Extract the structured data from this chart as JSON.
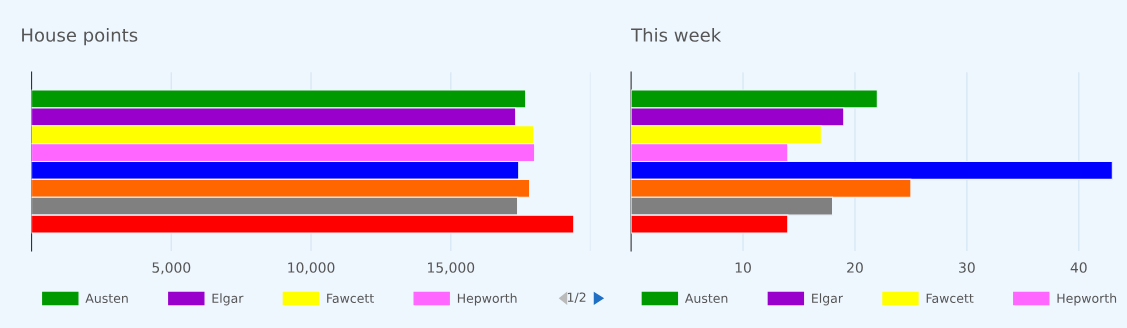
{
  "chart_data": [
    {
      "type": "bar",
      "orientation": "horizontal",
      "title": "House points",
      "categories": [
        null
      ],
      "xlim": [
        0,
        20000
      ],
      "xticks": [
        {
          "value": 5000,
          "label": "5,000"
        },
        {
          "value": 10000,
          "label": "10,000"
        },
        {
          "value": 15000,
          "label": "15,000"
        },
        {
          "value": 20000,
          "label": null
        }
      ],
      "grid": "x",
      "legend": "bottom",
      "annotations": [
        "1/2"
      ],
      "series": [
        {
          "name": "Austen",
          "color": "#009900",
          "values": [
            17680
          ]
        },
        {
          "name": "Elgar",
          "color": "#9900cc",
          "values": [
            17320
          ]
        },
        {
          "name": "Fawcett",
          "color": "#ffff00",
          "values": [
            17970
          ]
        },
        {
          "name": "Hepworth",
          "color": "#ff66ff",
          "values": [
            18000
          ]
        },
        {
          "color": "#0000ff",
          "values": [
            17430
          ]
        },
        {
          "color": "#ff6600",
          "values": [
            17820
          ]
        },
        {
          "color": "#808080",
          "values": [
            17390
          ]
        },
        {
          "color": "#ff0000",
          "values": [
            19400
          ]
        }
      ]
    },
    {
      "type": "bar",
      "orientation": "horizontal",
      "title": "This week",
      "categories": [
        null
      ],
      "xlim": [
        0,
        43
      ],
      "xticks": [
        10,
        20,
        30,
        40
      ],
      "grid": "x",
      "legend": "bottom",
      "series": [
        {
          "name": "Austen",
          "color": "#009900",
          "values": [
            22
          ]
        },
        {
          "name": "Elgar",
          "color": "#9900cc",
          "values": [
            19
          ]
        },
        {
          "name": "Fawcett",
          "color": "#ffff00",
          "values": [
            17
          ]
        },
        {
          "name": "Hepworth",
          "color": "#ff66ff",
          "values": [
            14
          ]
        },
        {
          "color": "#0000ff",
          "values": [
            43
          ]
        },
        {
          "color": "#ff6600",
          "values": [
            25
          ]
        },
        {
          "color": "#808080",
          "values": [
            18
          ]
        },
        {
          "color": "#ff0000",
          "values": [
            14
          ]
        }
      ]
    }
  ]
}
